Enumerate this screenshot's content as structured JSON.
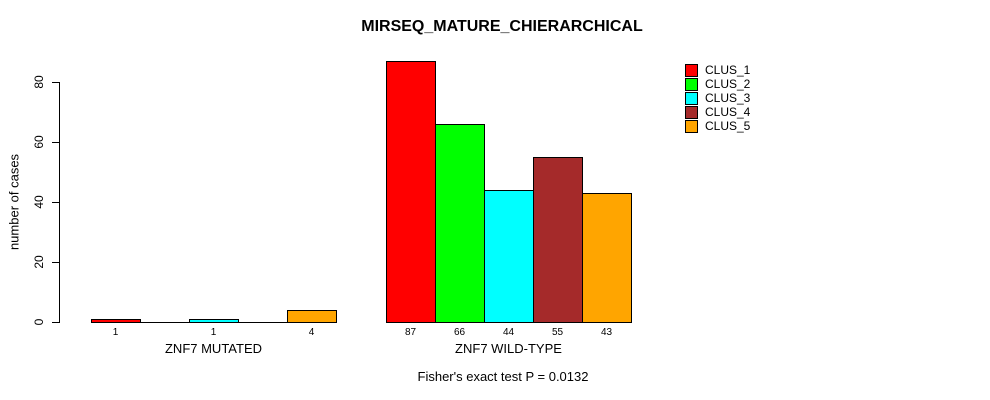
{
  "title": "MIRSEQ_MATURE_CHIERARCHICAL",
  "annotation": "Fisher's exact test P = 0.0132",
  "chart_data": {
    "type": "bar",
    "title": "MIRSEQ_MATURE_CHIERARCHICAL",
    "xlabel": "",
    "ylabel": "number of cases",
    "ylim": [
      0,
      87
    ],
    "yticks": [
      "0",
      "20",
      "40",
      "60",
      "80"
    ],
    "ytick_values": [
      0,
      20,
      40,
      60,
      80
    ],
    "grid": false,
    "legend_position": "topright",
    "series": [
      {
        "name": "CLUS_1",
        "color": "#FF0000",
        "values": [
          1,
          87
        ]
      },
      {
        "name": "CLUS_2",
        "color": "#00FF00",
        "values": [
          0,
          66
        ]
      },
      {
        "name": "CLUS_3",
        "color": "#00FFFF",
        "values": [
          1,
          44
        ]
      },
      {
        "name": "CLUS_4",
        "color": "#A52A2A",
        "values": [
          0,
          55
        ]
      },
      {
        "name": "CLUS_5",
        "color": "#FFA500",
        "values": [
          4,
          43
        ]
      }
    ],
    "groups": [
      {
        "label": "ZNF7 MUTATED",
        "values": [
          1,
          0,
          1,
          0,
          4
        ],
        "bar_labels": [
          "1",
          "",
          "1",
          "",
          "4"
        ]
      },
      {
        "label": "ZNF7 WILD-TYPE",
        "values": [
          87,
          66,
          44,
          55,
          43
        ],
        "bar_labels": [
          "87",
          "66",
          "44",
          "55",
          "43"
        ]
      }
    ],
    "annotation": "Fisher's exact test P = 0.0132"
  }
}
